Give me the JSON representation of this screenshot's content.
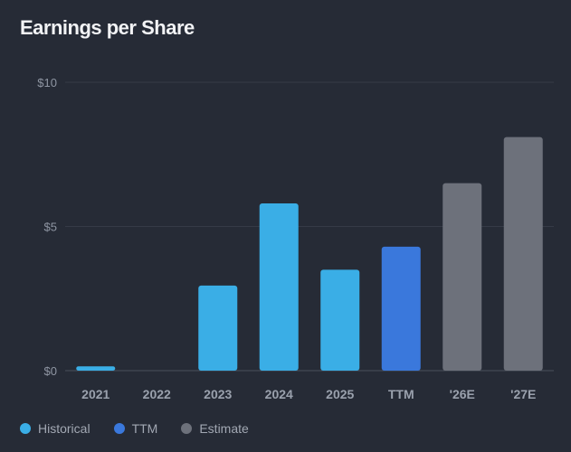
{
  "chart_data": {
    "type": "bar",
    "title": "Earnings per Share",
    "categories": [
      "2021",
      "2022",
      "2023",
      "2024",
      "2025",
      "TTM",
      "'26E",
      "'27E"
    ],
    "values": [
      0.15,
      0,
      2.95,
      5.8,
      3.5,
      4.3,
      6.5,
      8.1
    ],
    "bar_groups": [
      "Historical",
      "Historical",
      "Historical",
      "Historical",
      "Historical",
      "TTM",
      "Estimate",
      "Estimate"
    ],
    "ylim": [
      0,
      10
    ],
    "yticks": [
      {
        "value": 0,
        "label": "$0"
      },
      {
        "value": 5,
        "label": "$5"
      },
      {
        "value": 10,
        "label": "$10"
      }
    ],
    "grid": true,
    "legend_position": "bottom-left",
    "legend": [
      {
        "label": "Historical",
        "color": "#3aaee6"
      },
      {
        "label": "TTM",
        "color": "#3a78dc"
      },
      {
        "label": "Estimate",
        "color": "#6d717b"
      }
    ]
  },
  "colors": {
    "background": "#262b36",
    "gridline": "#353b47",
    "baseline": "#4a505c"
  }
}
